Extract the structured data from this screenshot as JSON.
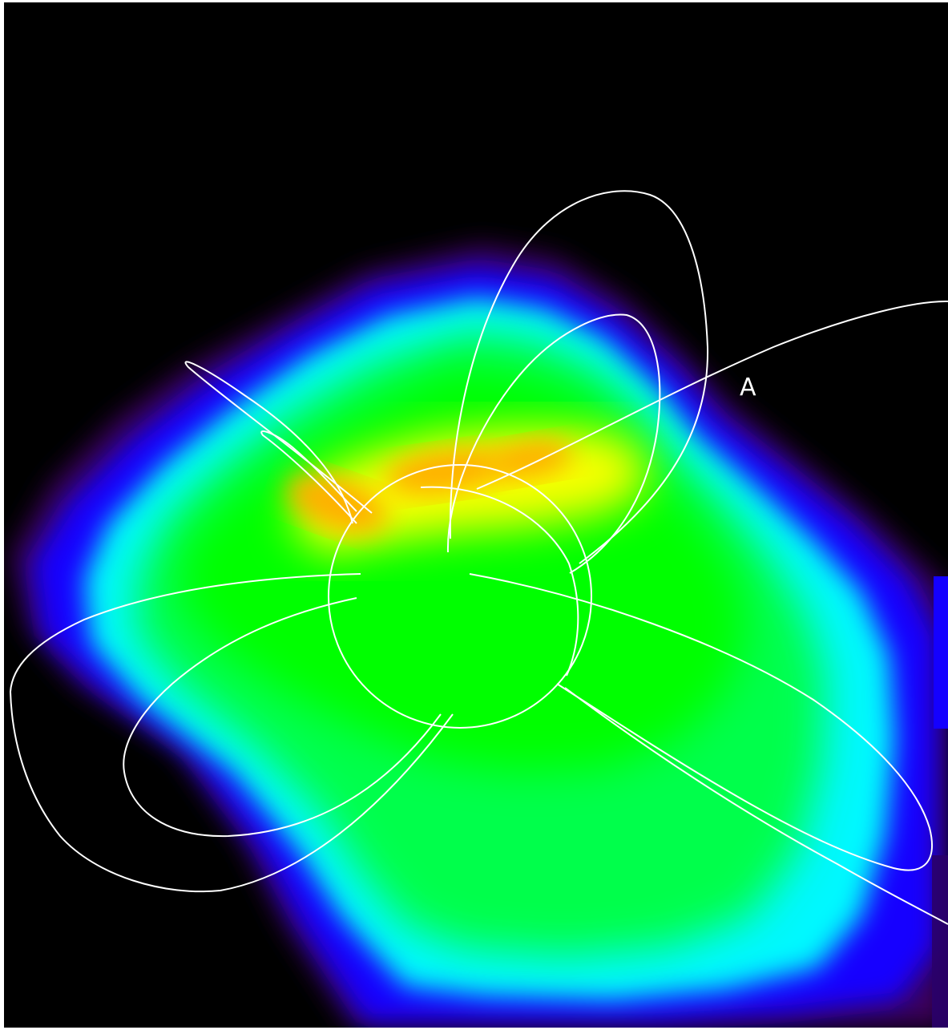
{
  "image": {
    "label": "A",
    "colors": {
      "background": "#000000",
      "frame": "#ffffff",
      "contour": "#ffffff",
      "colormap": [
        "#3a005a",
        "#1400ff",
        "#00f8ff",
        "#00ff4c",
        "#00ff00",
        "#f7ff00",
        "#ffb000"
      ]
    }
  }
}
